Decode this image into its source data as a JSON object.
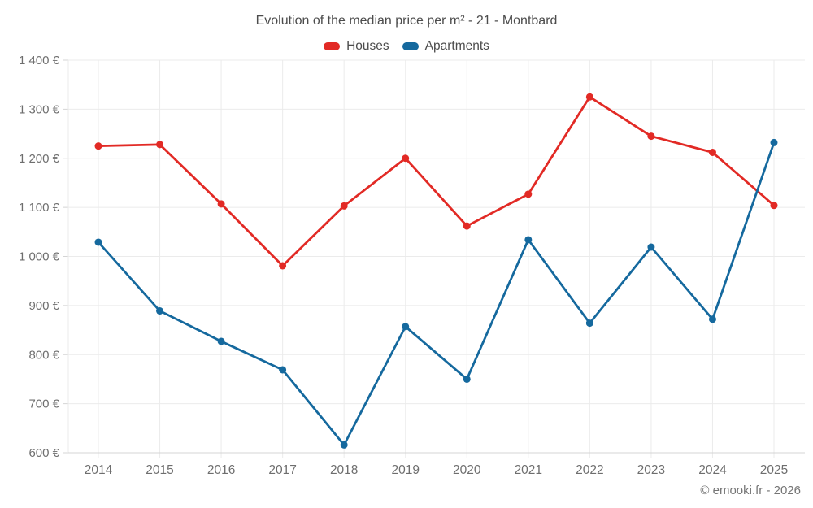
{
  "chart": {
    "title": "Evolution of the median price per m² - 21 - Montbard",
    "watermark": "© emooki.fr - 2026",
    "series_labels": {
      "houses": "Houses",
      "apartments": "Apartments"
    }
  },
  "chart_data": {
    "type": "line",
    "title": "Evolution of the median price per m² - 21 - Montbard",
    "xlabel": "",
    "ylabel": "",
    "x": [
      2014,
      2015,
      2016,
      2017,
      2018,
      2019,
      2020,
      2021,
      2022,
      2023,
      2024,
      2025
    ],
    "series": [
      {
        "name": "Houses",
        "color": "#e22a25",
        "values": [
          1225,
          1228,
          1107,
          981,
          1103,
          1200,
          1062,
          1127,
          1325,
          1245,
          1212,
          1104
        ]
      },
      {
        "name": "Apartments",
        "color": "#15699e",
        "values": [
          1029,
          889,
          827,
          769,
          616,
          857,
          750,
          1034,
          864,
          1019,
          872,
          1232
        ]
      }
    ],
    "ylim": [
      600,
      1400
    ],
    "ytick_step": 100,
    "ytick_labels": [
      "600 €",
      "700 €",
      "800 €",
      "900 €",
      "1 000 €",
      "1 100 €",
      "1 200 €",
      "1 300 €",
      "1 400 €"
    ],
    "grid": true,
    "legend_position": "top",
    "colors": {
      "gridline": "#ebebeb",
      "axis_line": "#d4d4d4",
      "tick": "#d4d4d4",
      "axis_label": "#6e6e6e"
    }
  }
}
